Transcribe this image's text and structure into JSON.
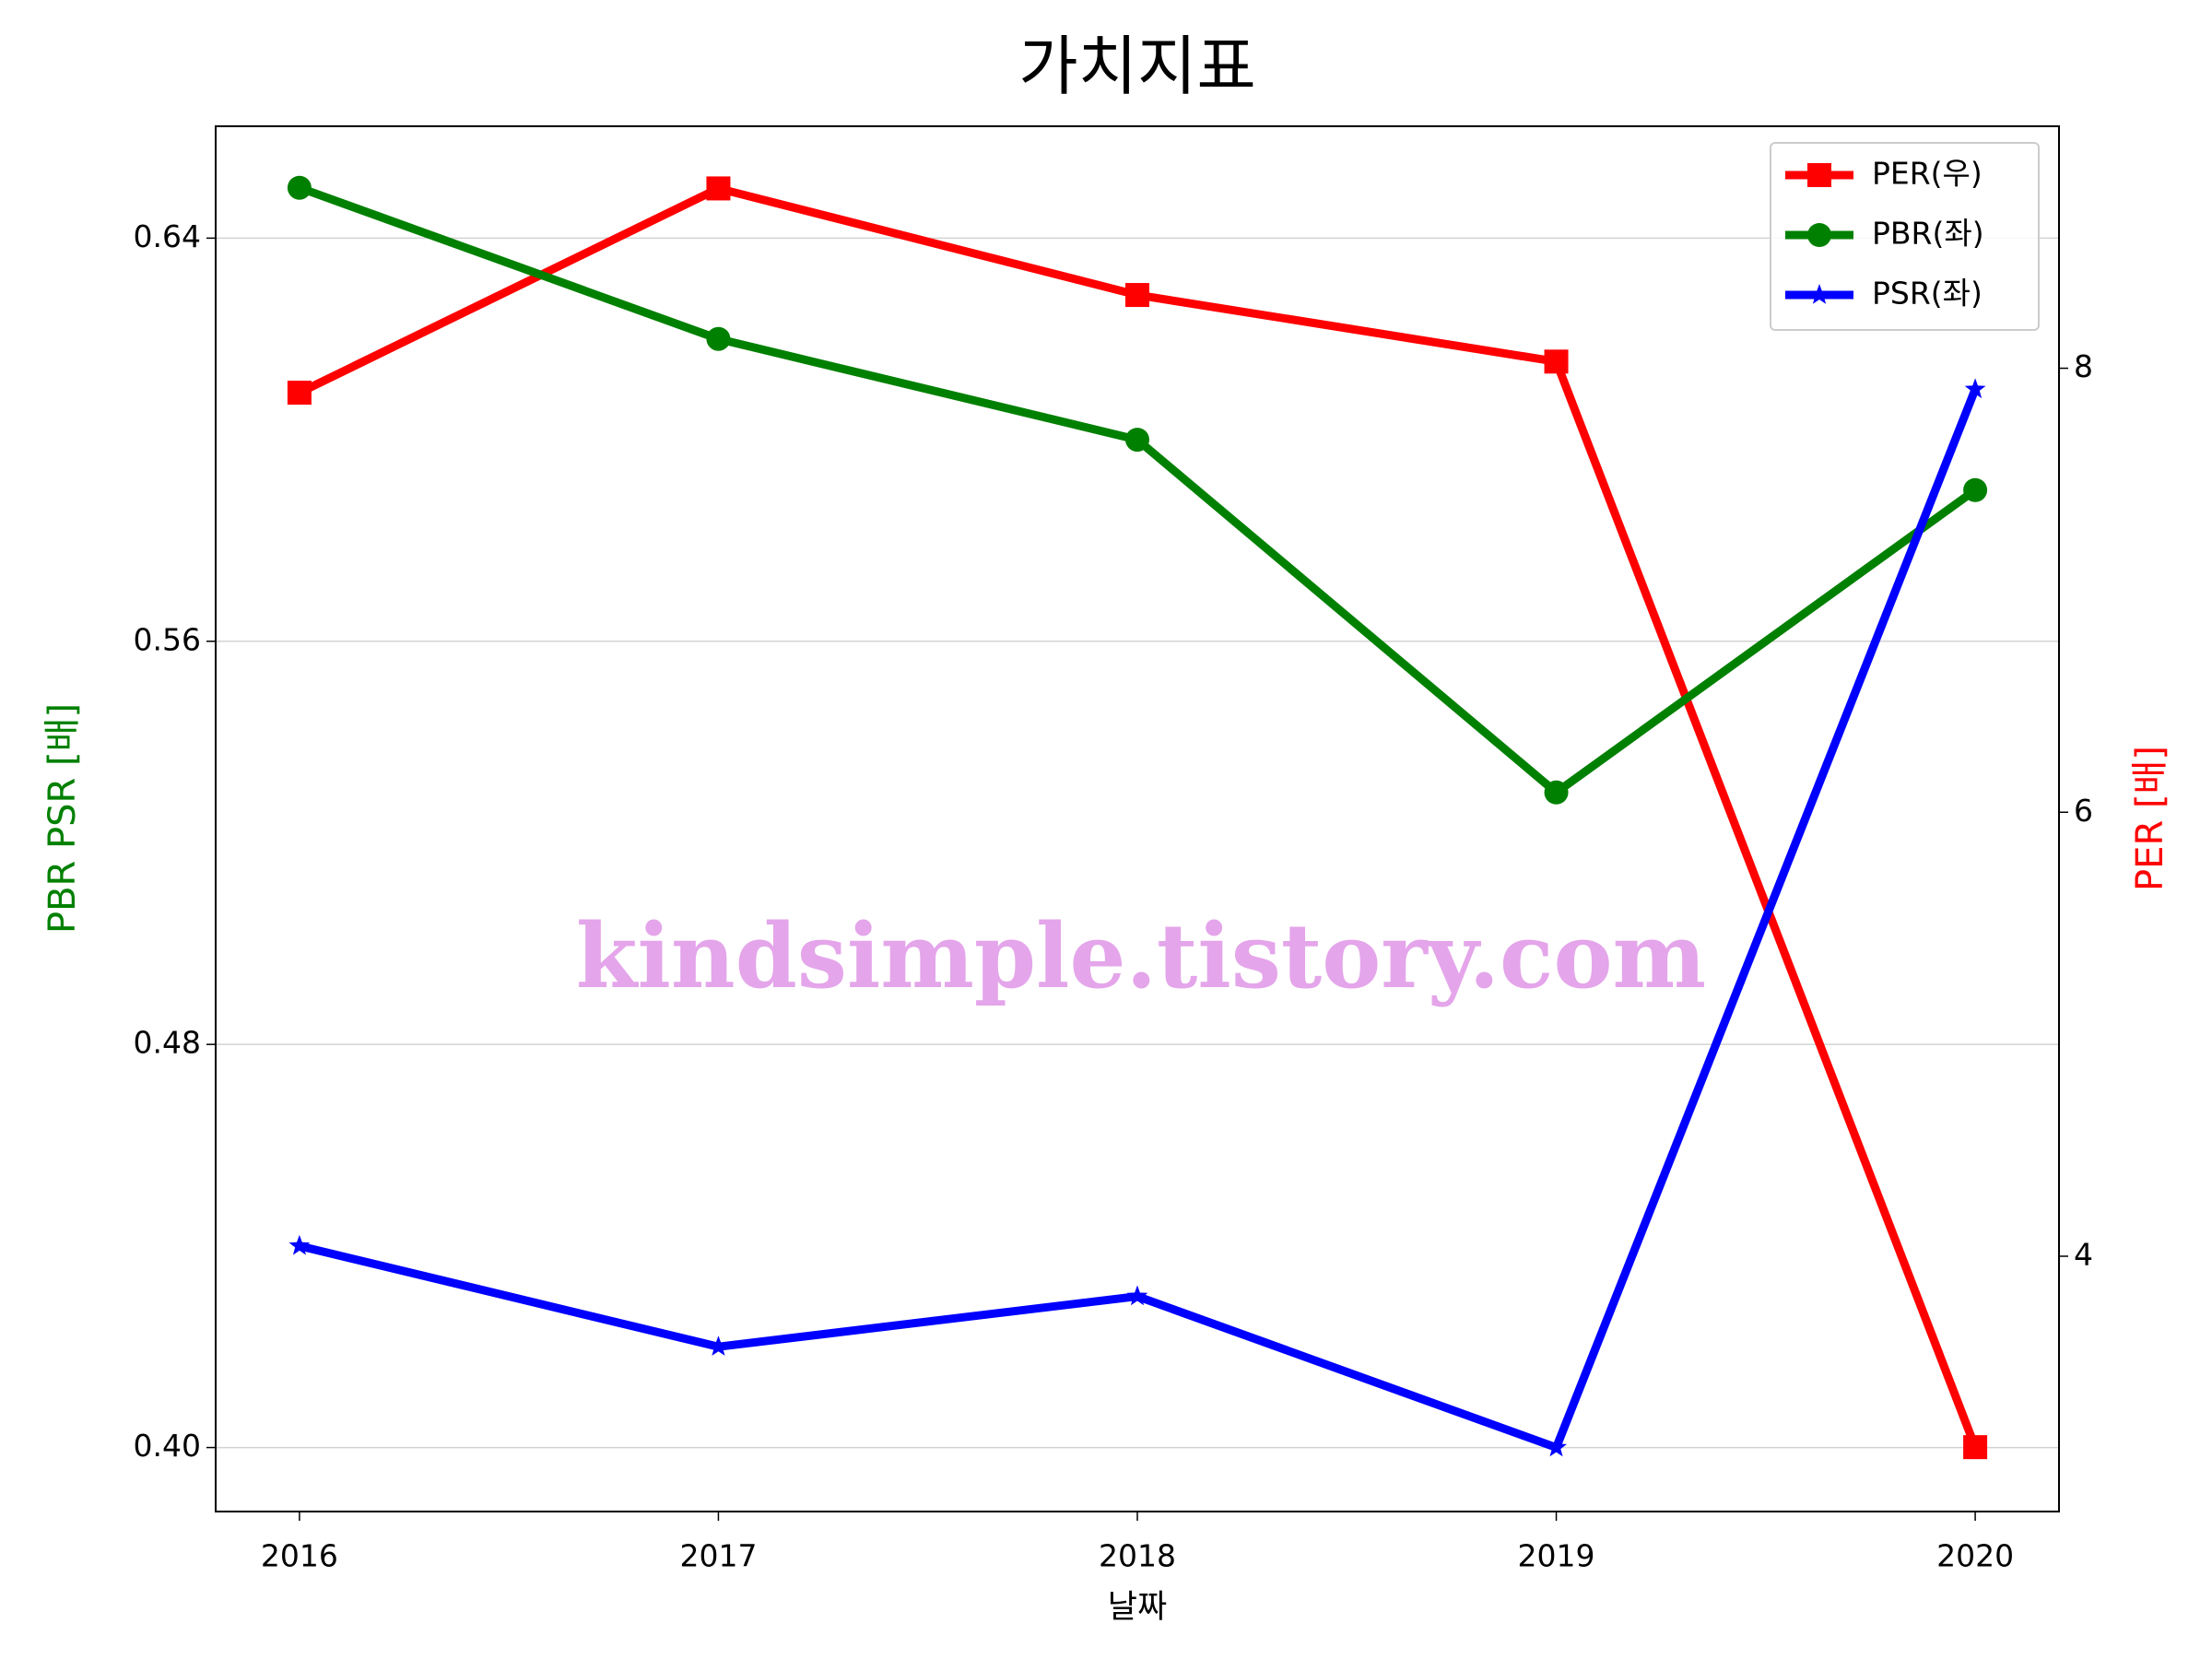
{
  "chart_data": {
    "type": "line",
    "title": "가치지표",
    "xlabel": "날짜",
    "ylabel": "PBR PSR [배]",
    "y2label": "PER [배]",
    "watermark": "kindsimple.tistory.com",
    "x": [
      2016,
      2017,
      2018,
      2019,
      2020
    ],
    "xlim": [
      2015.8,
      2020.2
    ],
    "xticks": [
      2016,
      2017,
      2018,
      2019,
      2020
    ],
    "ylim": [
      0.3873,
      0.6622
    ],
    "yticks": [
      {
        "value": 0.4,
        "label": "0.40"
      },
      {
        "value": 0.48,
        "label": "0.48"
      },
      {
        "value": 0.56,
        "label": "0.56"
      },
      {
        "value": 0.64,
        "label": "0.64"
      }
    ],
    "y2lim": [
      2.85,
      9.09
    ],
    "y2ticks": [
      4,
      6,
      8
    ],
    "grid": true,
    "legend": "upper right",
    "series": [
      {
        "name": "PER(우)",
        "color": "#ff0000",
        "marker": "square",
        "axis": "y2",
        "values": [
          7.89,
          8.81,
          8.33,
          8.03,
          3.14
        ]
      },
      {
        "name": "PBR(좌)",
        "color": "#008000",
        "marker": "circle",
        "values": [
          0.65,
          0.62,
          0.6,
          0.53,
          0.59
        ]
      },
      {
        "name": "PSR(좌)",
        "color": "#0000ff",
        "marker": "star",
        "values": [
          0.44,
          0.42,
          0.43,
          0.4,
          0.61
        ]
      }
    ]
  }
}
